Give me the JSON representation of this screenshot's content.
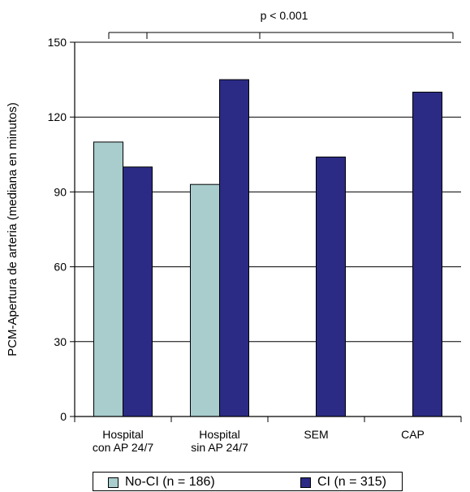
{
  "chart_data": {
    "type": "bar",
    "categories": [
      [
        "Hospital",
        "con AP 24/7"
      ],
      [
        "Hospital",
        "sin AP 24/7"
      ],
      [
        "SEM"
      ],
      [
        "CAP"
      ]
    ],
    "series": [
      {
        "name": "No-CI (n = 186)",
        "color": "#a9cdcd",
        "values": [
          110,
          93,
          null,
          null
        ]
      },
      {
        "name": "CI (n = 315)",
        "color": "#2b2b86",
        "values": [
          100,
          135,
          104,
          130
        ]
      }
    ],
    "ylabel": "PCM-Apertura de arteria (mediana en minutos)",
    "ylim": [
      0,
      150
    ],
    "yticks": [
      0,
      30,
      60,
      90,
      120,
      150
    ],
    "grid": true,
    "annotation": "p < 0.001",
    "legend_position": "bottom"
  }
}
